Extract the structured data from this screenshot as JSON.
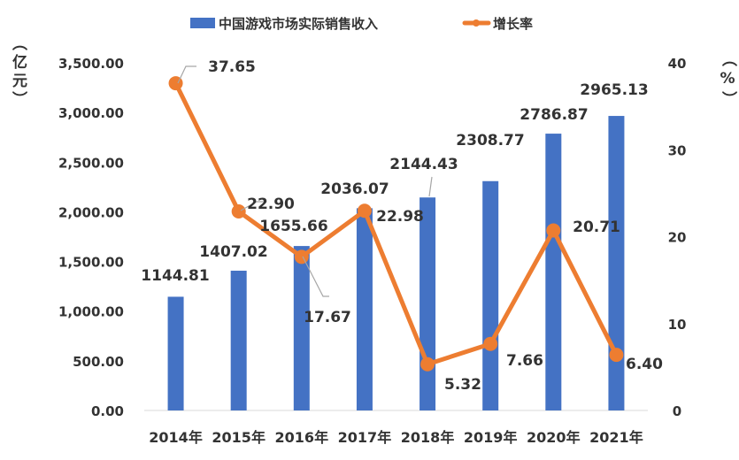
{
  "chart_data": {
    "type": "bar+line",
    "categories": [
      "2014年",
      "2015年",
      "2016年",
      "2017年",
      "2018年",
      "2019年",
      "2020年",
      "2021年"
    ],
    "series": [
      {
        "name": "中国游戏市场实际销售收入",
        "type": "bar",
        "axis": "left",
        "color": "#4472C4",
        "values": [
          1144.81,
          1407.02,
          1655.66,
          2036.07,
          2144.43,
          2308.77,
          2786.87,
          2965.13
        ],
        "labels": [
          "1144.81",
          "1407.02",
          "1655.66",
          "2036.07",
          "2144.43",
          "2308.77",
          "2786.87",
          "2965.13"
        ]
      },
      {
        "name": "增长率",
        "type": "line",
        "axis": "right",
        "color": "#ED7D31",
        "values": [
          37.65,
          22.9,
          17.67,
          22.98,
          5.32,
          7.66,
          20.71,
          6.4
        ],
        "labels": [
          "37.65",
          "22.90",
          "17.67",
          "22.98",
          "5.32",
          "7.66",
          "20.71",
          "6.40"
        ]
      }
    ],
    "y_left": {
      "label": "（亿元）",
      "range": [
        0,
        3500
      ],
      "ticks": [
        "0.00",
        "500.00",
        "1,000.00",
        "1,500.00",
        "2,000.00",
        "2,500.00",
        "3,000.00",
        "3,500.00"
      ]
    },
    "y_right": {
      "label": "（%）",
      "range": [
        0,
        40
      ],
      "ticks": [
        "0",
        "10",
        "20",
        "30",
        "40"
      ]
    },
    "legend": "top",
    "grid": false
  }
}
